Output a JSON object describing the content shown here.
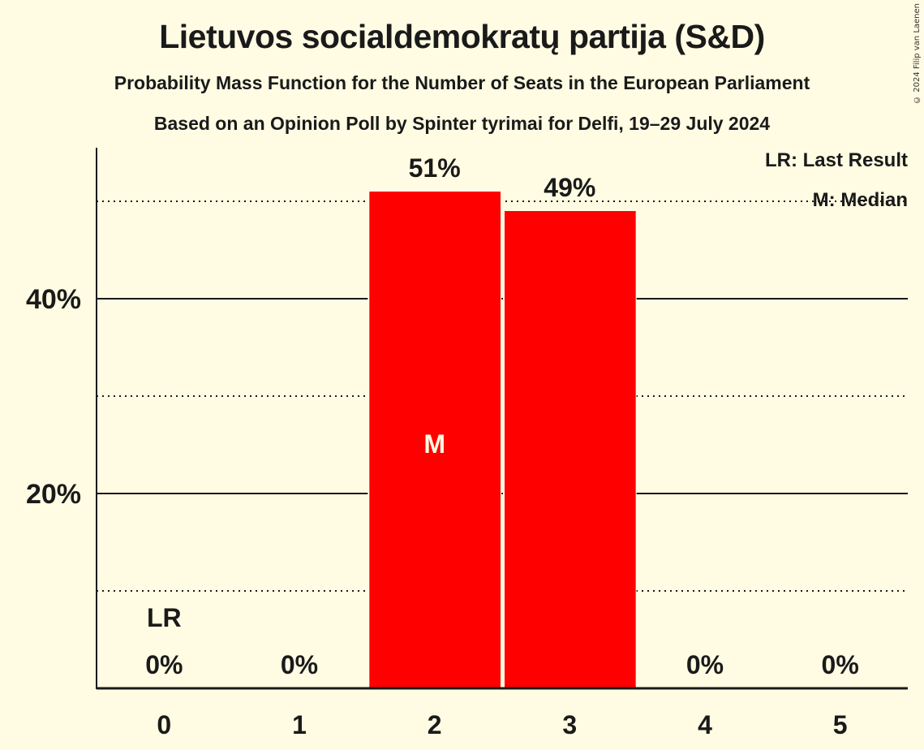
{
  "header": {
    "title": "Lietuvos socialdemokratų partija (S&D)",
    "subtitle": "Probability Mass Function for the Number of Seats in the European Parliament",
    "source": "Based on an Opinion Poll by Spinter tyrimai for Delfi, 19–29 July 2024",
    "copyright": "© 2024 Filip van Laenen"
  },
  "legend": {
    "lr": "LR: Last Result",
    "m": "M: Median"
  },
  "colors": {
    "background": "#FFFCE3",
    "bar": "#FF0000",
    "text": "#1a1a1a"
  },
  "chart_data": {
    "type": "bar",
    "title": "Lietuvos socialdemokratų partija (S&D)",
    "subtitle": "Probability Mass Function for the Number of Seats in the European Parliament",
    "xlabel": "",
    "ylabel": "",
    "categories": [
      "0",
      "1",
      "2",
      "3",
      "4",
      "5"
    ],
    "values": [
      0,
      0,
      51,
      49,
      0,
      0
    ],
    "value_labels": [
      "0%",
      "0%",
      "51%",
      "49%",
      "0%",
      "0%"
    ],
    "ylim": [
      0,
      55
    ],
    "yticks": [
      {
        "value": 20,
        "label": "20%",
        "style": "solid"
      },
      {
        "value": 40,
        "label": "40%",
        "style": "solid"
      },
      {
        "value": 10,
        "label": "",
        "style": "dotted"
      },
      {
        "value": 30,
        "label": "",
        "style": "dotted"
      },
      {
        "value": 50,
        "label": "",
        "style": "dotted"
      }
    ],
    "annotations": [
      {
        "category": "0",
        "text": "LR",
        "meaning": "Last Result"
      },
      {
        "category": "2",
        "text": "M",
        "meaning": "Median"
      }
    ],
    "legend_position": "top-right",
    "grid": true
  }
}
